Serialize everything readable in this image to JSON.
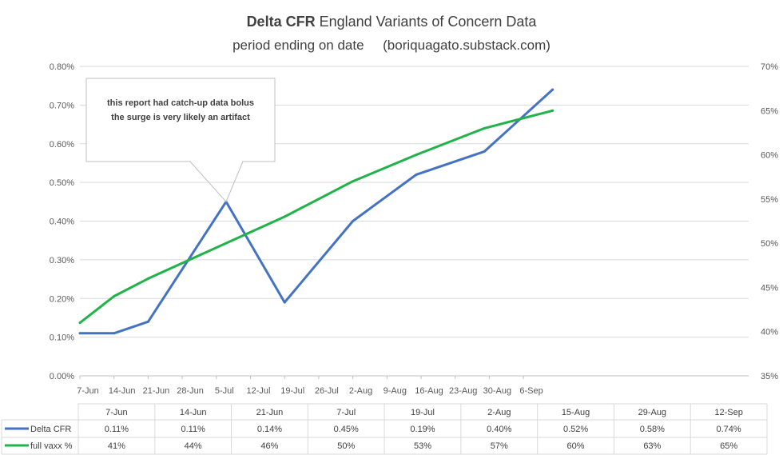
{
  "chart_data": {
    "type": "line",
    "title": {
      "bold": "Delta CFR",
      "rest": " England Variants of Concern Data",
      "line2": "period ending on date     (boriquagato.substack.com)"
    },
    "x_axis_ticks": [
      "7-Jun",
      "14-Jun",
      "21-Jun",
      "28-Jun",
      "5-Jul",
      "12-Jul",
      "19-Jul",
      "26-Jul",
      "2-Aug",
      "9-Aug",
      "16-Aug",
      "23-Aug",
      "30-Aug",
      "6-Sep"
    ],
    "y_left": {
      "min": 0,
      "max": 0.8,
      "ticks": [
        "0.00%",
        "0.10%",
        "0.20%",
        "0.30%",
        "0.40%",
        "0.50%",
        "0.60%",
        "0.70%",
        "0.80%"
      ]
    },
    "y_right": {
      "min": 35,
      "max": 70,
      "ticks": [
        "35%",
        "40%",
        "45%",
        "50%",
        "55%",
        "60%",
        "65%",
        "70%"
      ]
    },
    "series": [
      {
        "name": "Delta CFR",
        "axis": "left",
        "color": "#4472c4",
        "points": [
          {
            "x": "2021-06-07",
            "y": 0.11
          },
          {
            "x": "2021-06-14",
            "y": 0.11
          },
          {
            "x": "2021-06-21",
            "y": 0.14
          },
          {
            "x": "2021-07-07",
            "y": 0.45
          },
          {
            "x": "2021-07-19",
            "y": 0.19
          },
          {
            "x": "2021-08-02",
            "y": 0.4
          },
          {
            "x": "2021-08-15",
            "y": 0.52
          },
          {
            "x": "2021-08-29",
            "y": 0.58
          },
          {
            "x": "2021-09-12",
            "y": 0.74
          }
        ]
      },
      {
        "name": "full vaxx %",
        "axis": "right",
        "color": "#1fb34a",
        "points": [
          {
            "x": "2021-06-07",
            "y": 41
          },
          {
            "x": "2021-06-14",
            "y": 44
          },
          {
            "x": "2021-06-21",
            "y": 46
          },
          {
            "x": "2021-07-07",
            "y": 50
          },
          {
            "x": "2021-07-19",
            "y": 53
          },
          {
            "x": "2021-08-02",
            "y": 57
          },
          {
            "x": "2021-08-15",
            "y": 60
          },
          {
            "x": "2021-08-29",
            "y": 63
          },
          {
            "x": "2021-09-12",
            "y": 65
          }
        ]
      }
    ],
    "table": {
      "headers": [
        "7-Jun",
        "14-Jun",
        "21-Jun",
        "7-Jul",
        "19-Jul",
        "2-Aug",
        "15-Aug",
        "29-Aug",
        "12-Sep"
      ],
      "rows": [
        {
          "label": "Delta CFR",
          "values": [
            "0.11%",
            "0.11%",
            "0.14%",
            "0.45%",
            "0.19%",
            "0.40%",
            "0.52%",
            "0.58%",
            "0.74%"
          ]
        },
        {
          "label": "full vaxx %",
          "values": [
            "41%",
            "44%",
            "46%",
            "50%",
            "53%",
            "57%",
            "60%",
            "63%",
            "65%"
          ]
        }
      ]
    },
    "annotation": {
      "line1": "this report had catch-up  data bolus",
      "line2": "the surge is very likely  an artifact",
      "target_x": "2021-07-07",
      "target_series": "Delta CFR"
    },
    "grid": true,
    "legend": "in-table"
  }
}
